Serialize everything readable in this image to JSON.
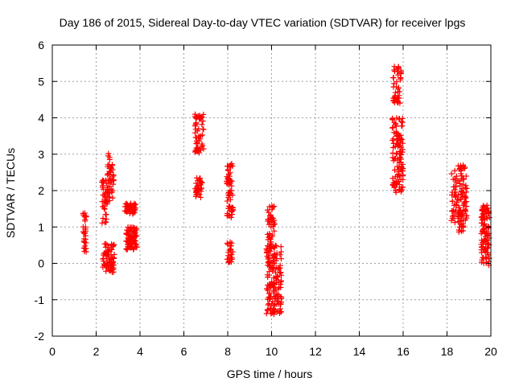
{
  "chart_data": {
    "type": "scatter",
    "title": "Day 186 of 2015, Sidereal Day-to-day VTEC variation (SDTVAR) for receiver lpgs",
    "xlabel": "GPS time / hours",
    "ylabel": "SDTVAR / TECUs",
    "xlim": [
      0,
      20
    ],
    "ylim": [
      -2,
      6
    ],
    "xticks": [
      0,
      2,
      4,
      6,
      8,
      10,
      12,
      14,
      16,
      18,
      20
    ],
    "yticks": [
      -2,
      -1,
      0,
      1,
      2,
      3,
      4,
      5,
      6
    ],
    "grid": true,
    "marker": "plus",
    "color": "#ff0000",
    "segments": [
      {
        "x0": 1.4,
        "x1": 1.55,
        "y0": 0.3,
        "y1": 1.4,
        "n": 30
      },
      {
        "x0": 2.25,
        "x1": 2.55,
        "y0": 1.1,
        "y1": 2.3,
        "n": 40
      },
      {
        "x0": 2.5,
        "x1": 2.8,
        "y0": 1.7,
        "y1": 3.05,
        "n": 45
      },
      {
        "x0": 2.3,
        "x1": 2.85,
        "y0": -0.25,
        "y1": 0.55,
        "n": 70
      },
      {
        "x0": 3.3,
        "x1": 3.8,
        "y0": 1.35,
        "y1": 1.65,
        "n": 45
      },
      {
        "x0": 3.35,
        "x1": 3.85,
        "y0": 0.35,
        "y1": 1.0,
        "n": 70
      },
      {
        "x0": 6.5,
        "x1": 6.9,
        "y0": 3.0,
        "y1": 4.1,
        "n": 55
      },
      {
        "x0": 6.5,
        "x1": 6.85,
        "y0": 1.8,
        "y1": 2.35,
        "n": 35
      },
      {
        "x0": 7.95,
        "x1": 8.25,
        "y0": 1.25,
        "y1": 2.75,
        "n": 60
      },
      {
        "x0": 7.95,
        "x1": 8.25,
        "y0": 0.0,
        "y1": 0.6,
        "n": 25
      },
      {
        "x0": 9.8,
        "x1": 10.15,
        "y0": 0.0,
        "y1": 1.6,
        "n": 60
      },
      {
        "x0": 9.75,
        "x1": 10.45,
        "y0": -1.4,
        "y1": 0.5,
        "n": 140
      },
      {
        "x0": 15.5,
        "x1": 15.95,
        "y0": 4.4,
        "y1": 5.45,
        "n": 45
      },
      {
        "x0": 15.5,
        "x1": 16.0,
        "y0": 1.95,
        "y1": 4.0,
        "n": 110
      },
      {
        "x0": 18.2,
        "x1": 18.9,
        "y0": 1.0,
        "y1": 2.7,
        "n": 110
      },
      {
        "x0": 18.5,
        "x1": 18.75,
        "y0": 0.8,
        "y1": 1.4,
        "n": 20
      },
      {
        "x0": 19.55,
        "x1": 19.95,
        "y0": -0.05,
        "y1": 1.6,
        "n": 100
      }
    ]
  }
}
